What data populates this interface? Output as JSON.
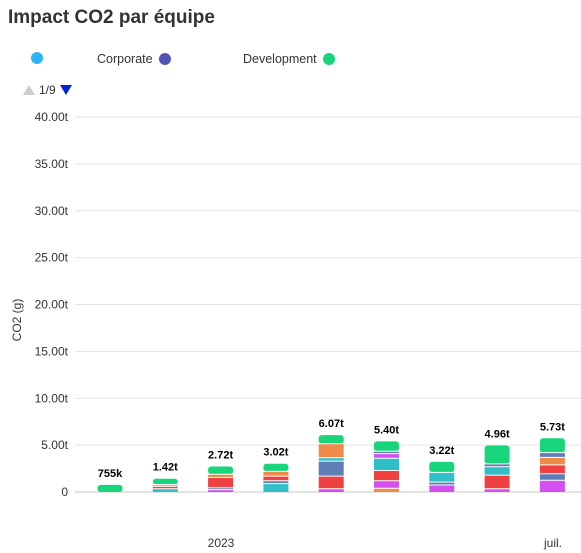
{
  "title": "Impact CO2 par équipe",
  "legend": [
    {
      "name": "",
      "color": "#2db4f5"
    },
    {
      "name": "Corporate",
      "color": "#5653b8"
    },
    {
      "name": "Development",
      "color": "#18d47a"
    }
  ],
  "pager": {
    "label": "1/9"
  },
  "chart_data": {
    "type": "bar",
    "stacked": true,
    "ylabel": "CO2 (g)",
    "ylim": [
      0,
      40
    ],
    "y_ticks": [
      "0",
      "5.00t",
      "10.00t",
      "15.00t",
      "20.00t",
      "25.00t",
      "30.00t",
      "35.00t",
      "40.00t"
    ],
    "x_labels": [
      "2023",
      "juil."
    ],
    "totals": [
      "755k",
      "1.42t",
      "2.72t",
      "3.02t",
      "6.07t",
      "5.40t",
      "3.22t",
      "4.96t",
      "5.73t"
    ],
    "total_values": [
      0.755,
      1.42,
      2.72,
      3.02,
      6.07,
      5.4,
      3.22,
      4.96,
      5.73
    ],
    "grid": true,
    "legend_position": "top-left",
    "segments": [
      [
        {
          "c": "#18d47a",
          "v": 0.755
        }
      ],
      [
        {
          "c": "#2fbfc7",
          "v": 0.35
        },
        {
          "c": "#f04141",
          "v": 0.25
        },
        {
          "c": "#f5a623",
          "v": 0.2
        },
        {
          "c": "#18d47a",
          "v": 0.62
        }
      ],
      [
        {
          "c": "#d34ff0",
          "v": 0.25
        },
        {
          "c": "#5d7fb5",
          "v": 0.2
        },
        {
          "c": "#f04141",
          "v": 1.1
        },
        {
          "c": "#f08a4b",
          "v": 0.35
        },
        {
          "c": "#18d47a",
          "v": 0.82
        }
      ],
      [
        {
          "c": "#2fbfc7",
          "v": 0.9
        },
        {
          "c": "#5d7fb5",
          "v": 0.3
        },
        {
          "c": "#f04141",
          "v": 0.5
        },
        {
          "c": "#f08a4b",
          "v": 0.5
        },
        {
          "c": "#18d47a",
          "v": 0.82
        }
      ],
      [
        {
          "c": "#d34ff0",
          "v": 0.35
        },
        {
          "c": "#f04141",
          "v": 1.35
        },
        {
          "c": "#5d7fb5",
          "v": 1.6
        },
        {
          "c": "#2fbfc7",
          "v": 0.35
        },
        {
          "c": "#f08a4b",
          "v": 1.5
        },
        {
          "c": "#18d47a",
          "v": 0.92
        }
      ],
      [
        {
          "c": "#f08a4b",
          "v": 0.4
        },
        {
          "c": "#d34ff0",
          "v": 0.8
        },
        {
          "c": "#f04141",
          "v": 1.1
        },
        {
          "c": "#2fbfc7",
          "v": 1.3
        },
        {
          "c": "#d34ff0",
          "v": 0.5
        },
        {
          "c": "#5d7fb5",
          "v": 0.25
        },
        {
          "c": "#18d47a",
          "v": 1.05
        }
      ],
      [
        {
          "c": "#d34ff0",
          "v": 0.75
        },
        {
          "c": "#5d7fb5",
          "v": 0.3
        },
        {
          "c": "#2fbfc7",
          "v": 1.05
        },
        {
          "c": "#18d47a",
          "v": 1.12
        }
      ],
      [
        {
          "c": "#d34ff0",
          "v": 0.35
        },
        {
          "c": "#f04141",
          "v": 1.45
        },
        {
          "c": "#2fbfc7",
          "v": 0.9
        },
        {
          "c": "#5d7fb5",
          "v": 0.3
        },
        {
          "c": "#18d47a",
          "v": 1.96
        }
      ],
      [
        {
          "c": "#d34ff0",
          "v": 1.25
        },
        {
          "c": "#5d7fb5",
          "v": 0.7
        },
        {
          "c": "#f04141",
          "v": 0.95
        },
        {
          "c": "#f08a4b",
          "v": 0.8
        },
        {
          "c": "#5d7fb5",
          "v": 0.5
        },
        {
          "c": "#18d47a",
          "v": 1.53
        }
      ]
    ]
  }
}
